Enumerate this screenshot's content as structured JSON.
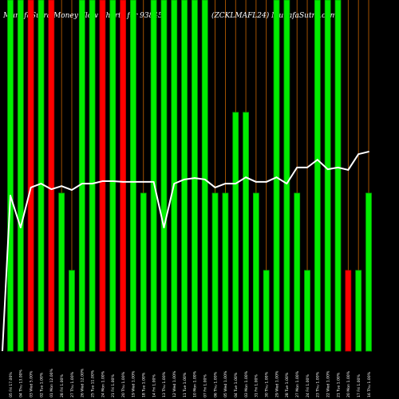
{
  "colors": {
    "background": "#000000",
    "positive": "#00ee00",
    "positive_edge": "#00a000",
    "negative": "#ff0000",
    "negative_edge": "#b00000",
    "grid": "#c86400",
    "line": "#ffffff"
  },
  "chart_data": {
    "type": "bar",
    "title": "MunafaSutra Money Flow Charts for 938450",
    "subtitle": "(ZCKLMAFL24) MunafaSutra.com",
    "xlabel": "",
    "ylabel": "",
    "ylim": [
      0,
      100
    ],
    "grid": true,
    "legend": "none",
    "categories": [
      "05 Fri 17.00%",
      "04 Thu 13.00%",
      "03 Wed 5.00%",
      "02 Tue 1.00%",
      "01 Mon 12.00%",
      "28 Fri 1.00%",
      "27 Thu 1.00%",
      "26 Wed 12.00%",
      "25 Tue 11.00%",
      "24 Mon 1.00%",
      "21 Fri 1.00%",
      "20 Thu 1.00%",
      "19 Wed 1.00%",
      "18 Tue 1.00%",
      "14 Fri 1.00%",
      "13 Thu 1.00%",
      "12 Wed 1.00%",
      "11 Tue 1.00%",
      "10 Mon 1.00%",
      "07 Fri 1.00%",
      "06 Thu 1.00%",
      "05 Wed 1.00%",
      "04 Tue 1.00%",
      "03 Mon 1.00%",
      "31 Fri 1.00%",
      "30 Thu 1.00%",
      "29 Wed 1.00%",
      "28 Tue 1.00%",
      "27 Mon 1.00%",
      "24 Fri 1.00%",
      "23 Thu 1.00%",
      "22 Wed 1.00%",
      "21 Tue 1.00%",
      "20 Mon 1.00%",
      "17 Fri 1.00%",
      "16 Thu 1.00%"
    ],
    "series": [
      {
        "values": [
          100,
          100,
          100,
          100,
          100,
          45,
          23,
          100,
          100,
          100,
          100,
          100,
          100,
          45,
          100,
          100,
          100,
          100,
          100,
          100,
          45,
          45,
          68,
          68,
          45,
          23,
          100,
          100,
          45,
          23,
          100,
          100,
          100,
          23,
          23,
          45
        ],
        "direction": [
          "up",
          "up",
          "down",
          "up",
          "down",
          "up",
          "up",
          "up",
          "up",
          "down",
          "up",
          "down",
          "up",
          "up",
          "up",
          "up",
          "up",
          "up",
          "up",
          "up",
          "up",
          "up",
          "up",
          "up",
          "up",
          "up",
          "up",
          "up",
          "up",
          "up",
          "up",
          "up",
          "up",
          "down",
          "up",
          "up"
        ]
      }
    ],
    "line": {
      "values": [
        44.3,
        35.2,
        46.6,
        47.7,
        46.1,
        47.0,
        45.9,
        47.7,
        47.7,
        48.4,
        48.4,
        48.2,
        48.2,
        48.2,
        48.2,
        35.2,
        47.7,
        48.9,
        49.3,
        48.9,
        46.6,
        47.7,
        47.7,
        49.5,
        48.2,
        48.2,
        49.5,
        47.7,
        52.3,
        52.3,
        54.5,
        51.8,
        52.3,
        51.6,
        56.1,
        56.8
      ]
    }
  }
}
